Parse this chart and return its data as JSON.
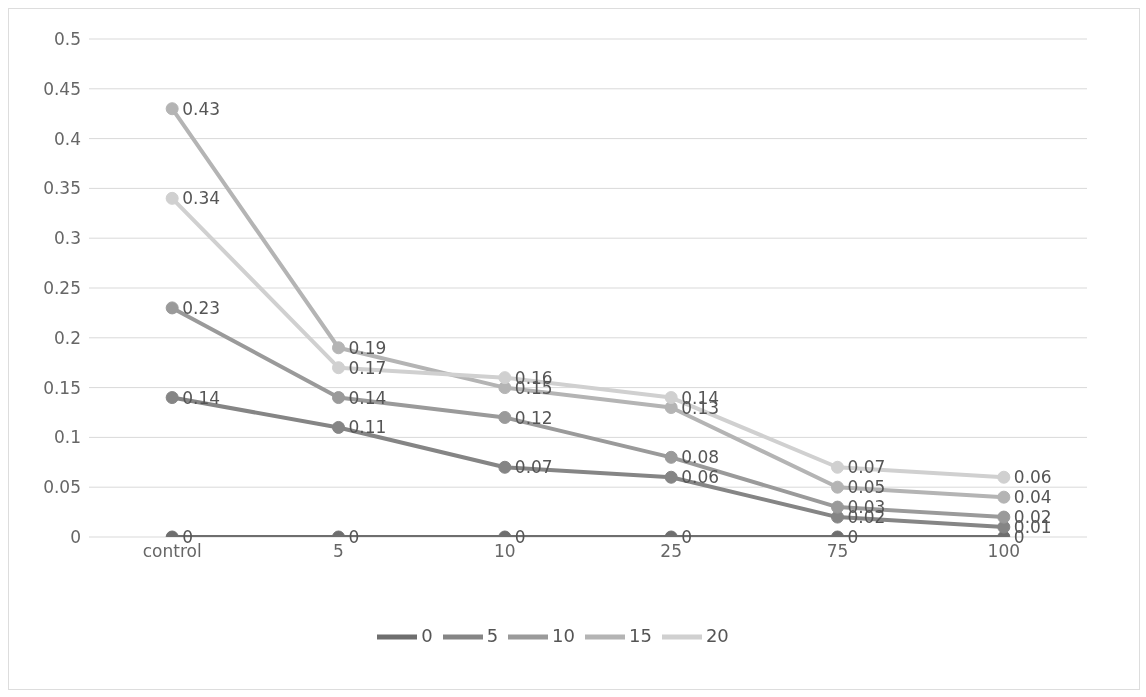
{
  "chart_data": {
    "type": "line",
    "categories": [
      "control",
      "5",
      "10",
      "25",
      "75",
      "100"
    ],
    "series": [
      {
        "name": "0",
        "color": "#6e6e6e",
        "values": [
          0,
          0,
          0,
          0,
          0,
          0
        ]
      },
      {
        "name": "5",
        "color": "#858585",
        "values": [
          0.14,
          0.11,
          0.07,
          0.06,
          0.02,
          0.01
        ]
      },
      {
        "name": "10",
        "color": "#9a9a9a",
        "values": [
          0.23,
          0.14,
          0.12,
          0.08,
          0.03,
          0.02
        ]
      },
      {
        "name": "15",
        "color": "#b4b4b4",
        "values": [
          0.43,
          0.19,
          0.15,
          0.13,
          0.05,
          0.04
        ]
      },
      {
        "name": "20",
        "color": "#d0d0d0",
        "values": [
          0.34,
          0.17,
          0.16,
          0.14,
          0.07,
          0.06
        ]
      }
    ],
    "ylim": [
      0,
      0.5
    ],
    "yticks": [
      0,
      0.05,
      0.1,
      0.15,
      0.2,
      0.25,
      0.3,
      0.35,
      0.4,
      0.45,
      0.5
    ],
    "grid": "y",
    "legend": "bottom",
    "marker": "circle",
    "line_style": "solid",
    "data_labels": true
  }
}
